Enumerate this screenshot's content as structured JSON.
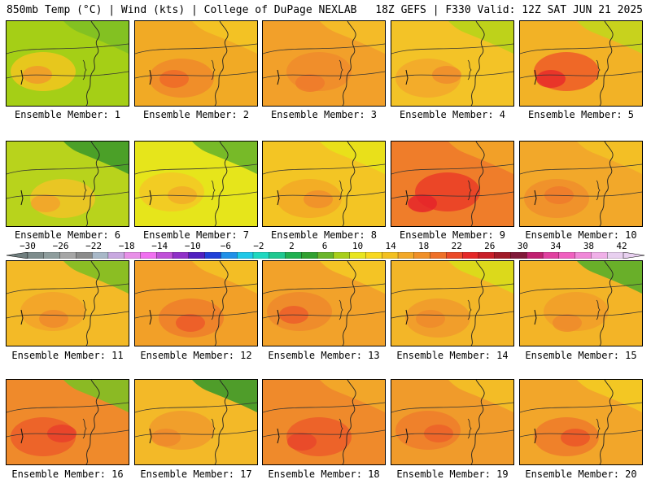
{
  "header": {
    "left": "850mb Temp (°C) | Wind (kts) | College of DuPage NEXLAB",
    "right": "18Z GEFS | F330 Valid: 12Z SAT JUN 21 2025"
  },
  "members": [
    {
      "label": "Ensemble Member: 1",
      "base": "#a5cf16",
      "blob": "#f2c61e",
      "warm": "#f09a2a",
      "cool": "#7fbf23"
    },
    {
      "label": "Ensemble Member: 2",
      "base": "#f1aa25",
      "blob": "#f08a2a",
      "warm": "#ee6a28",
      "cool": "#f3c425"
    },
    {
      "label": "Ensemble Member: 3",
      "base": "#f2a02a",
      "blob": "#f08b2c",
      "warm": "#ef7a2c",
      "cool": "#f4be28"
    },
    {
      "label": "Ensemble Member: 4",
      "base": "#f3c327",
      "blob": "#f2a82b",
      "warm": "#ef8c2d",
      "cool": "#b8d41a"
    },
    {
      "label": "Ensemble Member: 5",
      "base": "#f2b226",
      "blob": "#ee5a28",
      "warm": "#e82d2a",
      "cool": "#c3d51d"
    },
    {
      "label": "Ensemble Member: 6",
      "base": "#b8d31c",
      "blob": "#f1c326",
      "warm": "#f2a22b",
      "cool": "#3f9a2a"
    },
    {
      "label": "Ensemble Member: 7",
      "base": "#e6e51b",
      "blob": "#f3c824",
      "warm": "#f2ad27",
      "cool": "#6ab52a"
    },
    {
      "label": "Ensemble Member: 8",
      "base": "#f3c524",
      "blob": "#f2a826",
      "warm": "#f08e2b",
      "cool": "#e8e21a"
    },
    {
      "label": "Ensemble Member: 9",
      "base": "#ef7d2a",
      "blob": "#ea3c27",
      "warm": "#e5252a",
      "cool": "#f2a428"
    },
    {
      "label": "Ensemble Member: 10",
      "base": "#f2a82a",
      "blob": "#f08e2c",
      "warm": "#ef7a2b",
      "cool": "#f3c125"
    },
    {
      "label": "Ensemble Member: 11",
      "base": "#f3ba27",
      "blob": "#f2a22a",
      "warm": "#ef8a2b",
      "cool": "#7fbf23"
    },
    {
      "label": "Ensemble Member: 12",
      "base": "#f2a028",
      "blob": "#ef7e2a",
      "warm": "#ec5a29",
      "cool": "#f3c125"
    },
    {
      "label": "Ensemble Member: 13",
      "base": "#f2a22a",
      "blob": "#ef882c",
      "warm": "#ec5e2a",
      "cool": "#f4c825"
    },
    {
      "label": "Ensemble Member: 14",
      "base": "#f3b628",
      "blob": "#f09a2b",
      "warm": "#ef8a2b",
      "cool": "#d9dd1a"
    },
    {
      "label": "Ensemble Member: 15",
      "base": "#f3b427",
      "blob": "#f19d2a",
      "warm": "#ef8b2b",
      "cool": "#5aae2a"
    },
    {
      "label": "Ensemble Member: 16",
      "base": "#ef8a2b",
      "blob": "#ec5d29",
      "warm": "#e8402a",
      "cool": "#7fbf23"
    },
    {
      "label": "Ensemble Member: 17",
      "base": "#f3b928",
      "blob": "#f09a2b",
      "warm": "#ef882b",
      "cool": "#3d9a2a"
    },
    {
      "label": "Ensemble Member: 18",
      "base": "#ef8a2b",
      "blob": "#ec5c29",
      "warm": "#e8462a",
      "cool": "#f2a829"
    },
    {
      "label": "Ensemble Member: 19",
      "base": "#f09b2b",
      "blob": "#ef7d2b",
      "warm": "#ec6229",
      "cool": "#f3c026"
    },
    {
      "label": "Ensemble Member: 20",
      "base": "#f2a62a",
      "blob": "#ee7a2a",
      "warm": "#eb5628",
      "cool": "#f3cb22"
    }
  ],
  "colorbar": {
    "ticks": [
      "−30",
      "−26",
      "−22",
      "−18",
      "−14",
      "−10",
      "−6",
      "−2",
      "2",
      "6",
      "10",
      "14",
      "18",
      "22",
      "26",
      "30",
      "34",
      "38",
      "42"
    ],
    "colors": [
      "#7d8c8c",
      "#8e9d9d",
      "#a6a6a6",
      "#8b8b8b",
      "#a8b8c8",
      "#c8a8e0",
      "#e890e8",
      "#f070f0",
      "#c050d8",
      "#9030c8",
      "#5020c0",
      "#2040d8",
      "#2090e8",
      "#20c8e8",
      "#20d8c0",
      "#20c890",
      "#20b050",
      "#30a030",
      "#6ab52a",
      "#a8cf1a",
      "#e8e520",
      "#f8d820",
      "#f3c020",
      "#f2a828",
      "#f09028",
      "#ee7028",
      "#ea4a28",
      "#e52828",
      "#c81e28",
      "#a01a28",
      "#801838",
      "#c02070",
      "#e040a0",
      "#f060c0",
      "#f088d8",
      "#f0b0e8",
      "#e8d0f0"
    ]
  }
}
